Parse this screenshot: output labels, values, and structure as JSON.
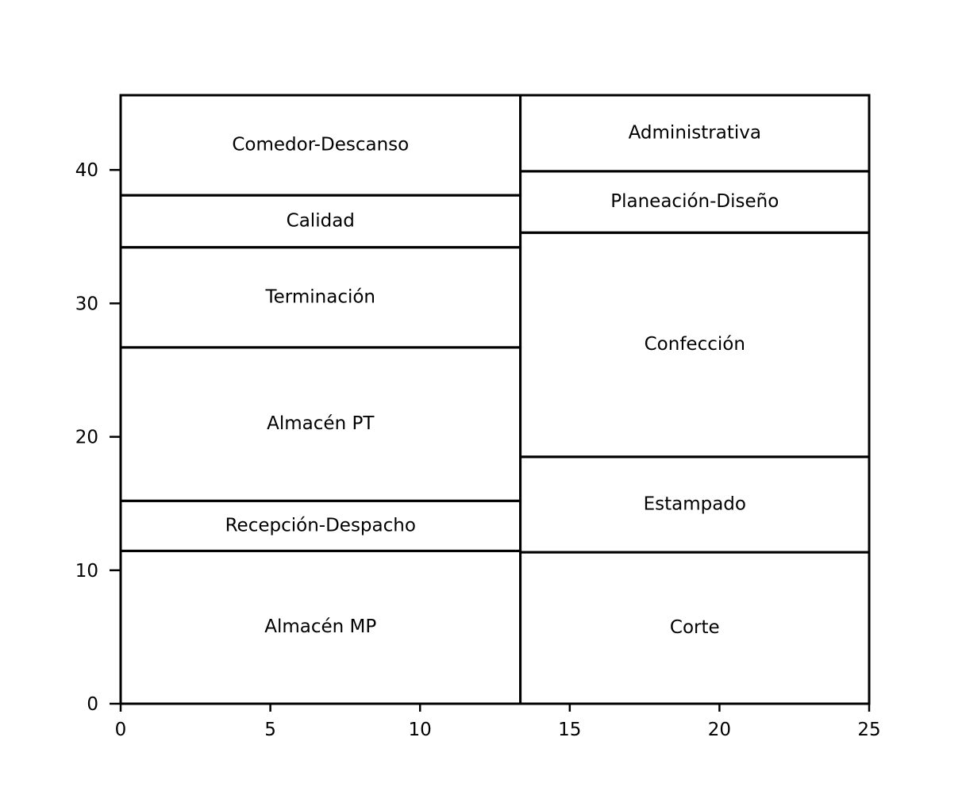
{
  "chart_data": {
    "type": "block-layout",
    "title": "",
    "xlabel": "",
    "ylabel": "",
    "xlim": [
      0,
      25
    ],
    "ylim": [
      0,
      45.6
    ],
    "xticks": [
      0,
      5,
      10,
      15,
      20,
      25
    ],
    "yticks": [
      0,
      10,
      20,
      30,
      40
    ],
    "grid": false,
    "areas": [
      {
        "name": "Almacén MP",
        "x0": 0,
        "x1": 13.35,
        "y0": 0,
        "y1": 11.45
      },
      {
        "name": "Recepción-Despacho",
        "x0": 0,
        "x1": 13.35,
        "y0": 11.45,
        "y1": 15.2
      },
      {
        "name": "Almacén PT",
        "x0": 0,
        "x1": 13.35,
        "y0": 15.2,
        "y1": 26.7
      },
      {
        "name": "Terminación",
        "x0": 0,
        "x1": 13.35,
        "y0": 26.7,
        "y1": 34.2
      },
      {
        "name": "Calidad",
        "x0": 0,
        "x1": 13.35,
        "y0": 34.2,
        "y1": 38.1
      },
      {
        "name": "Comedor-Descanso",
        "x0": 0,
        "x1": 13.35,
        "y0": 38.1,
        "y1": 45.6
      },
      {
        "name": "Corte",
        "x0": 13.35,
        "x1": 25,
        "y0": 0,
        "y1": 11.35
      },
      {
        "name": "Estampado",
        "x0": 13.35,
        "x1": 25,
        "y0": 11.35,
        "y1": 18.5
      },
      {
        "name": "Confección",
        "x0": 13.35,
        "x1": 25,
        "y0": 18.5,
        "y1": 35.3
      },
      {
        "name": "Planeación-Diseño",
        "x0": 13.35,
        "x1": 25,
        "y0": 35.3,
        "y1": 39.9
      },
      {
        "name": "Administrativa",
        "x0": 13.35,
        "x1": 25,
        "y0": 39.9,
        "y1": 45.6
      }
    ]
  }
}
